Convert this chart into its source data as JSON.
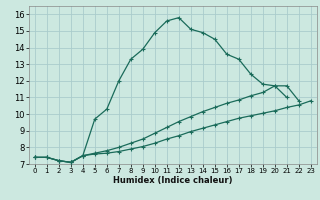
{
  "xlabel": "Humidex (Indice chaleur)",
  "bg_color": "#cce8e0",
  "grid_color": "#aacccc",
  "line_color": "#1a6b5a",
  "xlim": [
    -0.5,
    23.5
  ],
  "ylim": [
    7.0,
    16.5
  ],
  "yticks": [
    7,
    8,
    9,
    10,
    11,
    12,
    13,
    14,
    15,
    16
  ],
  "xticks": [
    0,
    1,
    2,
    3,
    4,
    5,
    6,
    7,
    8,
    9,
    10,
    11,
    12,
    13,
    14,
    15,
    16,
    17,
    18,
    19,
    20,
    21,
    22,
    23
  ],
  "line1_x": [
    0,
    1,
    2,
    3,
    4,
    5,
    6,
    7,
    8,
    9,
    10,
    11,
    12,
    13,
    14,
    15,
    16,
    17,
    18,
    19,
    20,
    21
  ],
  "line1_y": [
    7.4,
    7.4,
    7.2,
    7.1,
    7.5,
    9.7,
    10.3,
    12.0,
    13.3,
    13.9,
    14.9,
    15.6,
    15.8,
    15.1,
    14.9,
    14.5,
    13.6,
    13.3,
    12.4,
    11.8,
    11.7,
    11.0
  ],
  "line2_x": [
    0,
    1,
    2,
    3,
    4,
    5,
    6,
    7,
    8,
    9,
    10,
    11,
    12,
    13,
    14,
    15,
    16,
    17,
    18,
    19,
    20,
    21,
    22
  ],
  "line2_y": [
    7.4,
    7.4,
    7.2,
    7.1,
    7.5,
    7.65,
    7.8,
    8.0,
    8.25,
    8.5,
    8.85,
    9.2,
    9.55,
    9.85,
    10.15,
    10.4,
    10.65,
    10.85,
    11.1,
    11.3,
    11.7,
    11.7,
    10.8
  ],
  "line3_x": [
    0,
    1,
    2,
    3,
    4,
    5,
    6,
    7,
    8,
    9,
    10,
    11,
    12,
    13,
    14,
    15,
    16,
    17,
    18,
    19,
    20,
    21,
    22,
    23
  ],
  "line3_y": [
    7.4,
    7.4,
    7.2,
    7.1,
    7.5,
    7.6,
    7.65,
    7.75,
    7.9,
    8.05,
    8.25,
    8.5,
    8.7,
    8.95,
    9.15,
    9.35,
    9.55,
    9.75,
    9.9,
    10.05,
    10.2,
    10.4,
    10.55,
    10.8
  ]
}
